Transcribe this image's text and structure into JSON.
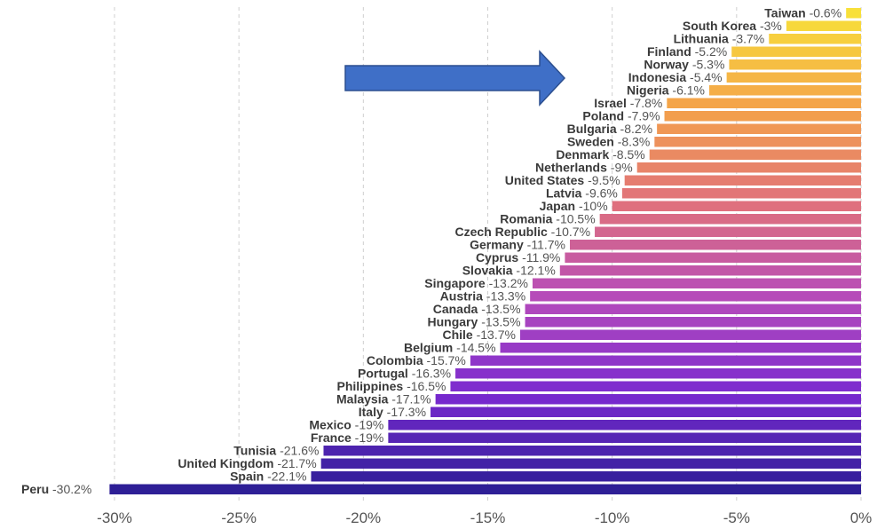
{
  "chart_data": {
    "type": "bar",
    "orientation": "horizontal",
    "categories": [
      "Taiwan",
      "South Korea",
      "Lithuania",
      "Finland",
      "Norway",
      "Indonesia",
      "Nigeria",
      "Israel",
      "Poland",
      "Bulgaria",
      "Sweden",
      "Denmark",
      "Netherlands",
      "United States",
      "Latvia",
      "Japan",
      "Romania",
      "Czech Republic",
      "Germany",
      "Cyprus",
      "Slovakia",
      "Singapore",
      "Austria",
      "Canada",
      "Hungary",
      "Chile",
      "Belgium",
      "Colombia",
      "Portugal",
      "Philippines",
      "Malaysia",
      "Italy",
      "Mexico",
      "France",
      "Tunisia",
      "United Kingdom",
      "Spain",
      "Peru"
    ],
    "values": [
      -0.6,
      -3,
      -3.7,
      -5.2,
      -5.3,
      -5.4,
      -6.1,
      -7.8,
      -7.9,
      -8.2,
      -8.3,
      -8.5,
      -9,
      -9.5,
      -9.6,
      -10,
      -10.5,
      -10.7,
      -11.7,
      -11.9,
      -12.1,
      -13.2,
      -13.3,
      -13.5,
      -13.5,
      -13.7,
      -14.5,
      -15.7,
      -16.3,
      -16.5,
      -17.1,
      -17.3,
      -19,
      -19,
      -21.6,
      -21.7,
      -22.1,
      -30.2
    ],
    "value_labels": [
      "-0.6%",
      "-3%",
      "-3.7%",
      "-5.2%",
      "-5.3%",
      "-5.4%",
      "-6.1%",
      "-7.8%",
      "-7.9%",
      "-8.2%",
      "-8.3%",
      "-8.5%",
      "-9%",
      "-9.5%",
      "-9.6%",
      "-10%",
      "-10.5%",
      "-10.7%",
      "-11.7%",
      "-11.9%",
      "-12.1%",
      "-13.2%",
      "-13.3%",
      "-13.5%",
      "-13.5%",
      "-13.7%",
      "-14.5%",
      "-15.7%",
      "-16.3%",
      "-16.5%",
      "-17.1%",
      "-17.3%",
      "-19%",
      "-19%",
      "-21.6%",
      "-21.7%",
      "-22.1%",
      "-30.2%"
    ],
    "xlim": [
      -30,
      0
    ],
    "xticks": [
      -30,
      -25,
      -20,
      -15,
      -10,
      -5,
      0
    ],
    "xtick_labels": [
      "-30%",
      "-25%",
      "-20%",
      "-15%",
      "-10%",
      "-5%",
      "0%"
    ],
    "grid": "vertical-dashed",
    "color_gradient": [
      "#f8e03a",
      "#f4a24a",
      "#e0717c",
      "#b54bbb",
      "#7a2ad0",
      "#2e1f96"
    ],
    "title": "",
    "xlabel": "",
    "ylabel": ""
  },
  "annotation": {
    "shape": "arrow-right",
    "color": "#3f6fc7",
    "border_color": "#2c4f8f"
  }
}
